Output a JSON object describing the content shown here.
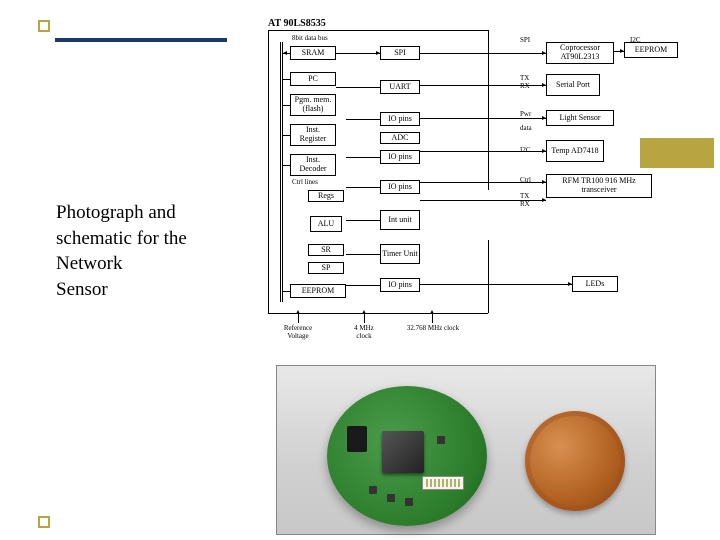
{
  "caption": {
    "line1": "Photograph and",
    "line2": "schematic for the",
    "line3": "Network",
    "line4": "Sensor"
  },
  "schematic": {
    "mcu_title": "AT 90LS8535",
    "bus_label": "8bit data bus",
    "ctrl_lines": "Ctrl lines",
    "left": [
      "SRAM",
      "PC",
      "Pgm. mem. (flash)",
      "Inst. Register",
      "Inst. Decoder",
      "Regs",
      "ALU",
      "SR",
      "SP",
      "EEPROM"
    ],
    "mid": [
      "SPI",
      "UART",
      "IO pins",
      "ADC",
      "IO pins",
      "IO pins",
      "Int unit",
      "Timer Unit",
      "IO pins"
    ],
    "sigs": [
      "SPI",
      "I2C",
      "TX\nRX",
      "Pwr",
      "data",
      "I2C",
      "Ctrl",
      "TX\nRX"
    ],
    "right": [
      "Coprocessor AT90L2313",
      "EEPROM",
      "Serial Port",
      "Light Sensor",
      "Temp AD7418",
      "RFM TR100 916 MHz transceiver",
      "LEDs"
    ],
    "inputs": [
      "Reference Voltage",
      "4 MHz clock",
      "32.768 MHz clock"
    ],
    "style": {
      "box_border_color": "#000000",
      "line_color": "#000000",
      "font_size_box": 8,
      "font_size_label": 7,
      "title_font_size": 10,
      "background": "#ffffff"
    }
  },
  "photo": {
    "description": "Circular green PCB with square MCU chip, pin header connector, black cylinder component, and SMD parts, shown next to a copper US penny for scale",
    "pcb_color": "#2a7a2a",
    "chip_color": "#333333",
    "coin_color": "#b06020",
    "background_gradient": [
      "#e8e8e8",
      "#c8c8c8"
    ]
  },
  "theme": {
    "accent_color": "#b8a542",
    "underline_color": "#1a3a6e",
    "text_color": "#000000",
    "caption_font_size": 19,
    "caption_font_family": "serif"
  }
}
